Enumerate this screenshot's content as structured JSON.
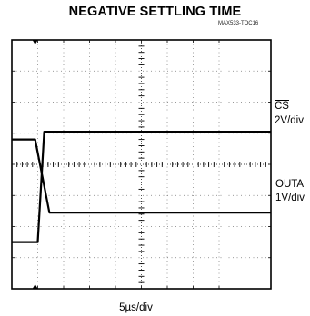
{
  "chart_data": {
    "type": "line",
    "title": "NEGATIVE SETTLING TIME",
    "figure_code": "MAX533-TOC16",
    "x_scale": "5µs/div",
    "grid": true,
    "x_divisions": 10,
    "y_divisions": 8,
    "x_range_div": [
      0,
      10
    ],
    "y_range_div": [
      0,
      8
    ],
    "channels": [
      {
        "name": "CS",
        "overline": true,
        "scale": "2V/div",
        "points_div": [
          [
            0,
            1.5
          ],
          [
            1.0,
            1.5
          ],
          [
            1.25,
            5.05
          ],
          [
            10,
            5.05
          ]
        ]
      },
      {
        "name": "OUTA",
        "scale": "1V/div",
        "points_div": [
          [
            0,
            4.8
          ],
          [
            0.9,
            4.8
          ],
          [
            1.45,
            2.45
          ],
          [
            10,
            2.45
          ]
        ]
      }
    ],
    "trigger_marker_div": 0.9
  }
}
